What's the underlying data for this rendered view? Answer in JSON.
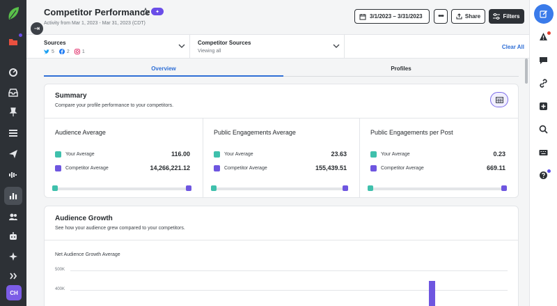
{
  "colors": {
    "your": "#3fc0ac",
    "competitor": "#6e56e0",
    "accent": "#2f6fd6"
  },
  "left_nav": {
    "icons": [
      "sprout-logo-icon",
      "folder-icon",
      "dashboard-icon",
      "inbox-icon",
      "pin-icon",
      "list-icon",
      "send-icon",
      "listening-icon",
      "reports-icon",
      "people-icon",
      "bot-icon",
      "star-sparkle-icon",
      "apps-icon"
    ],
    "avatar": "CH"
  },
  "header": {
    "title": "Competitor Performance",
    "subtitle": "Activity from Mar 1, 2023 - Mar 31, 2023 (CDT)",
    "date_range": "3/1/2023 – 3/31/2023",
    "share_label": "Share",
    "filters_label": "Filters"
  },
  "filters": {
    "sources_label": "Sources",
    "sources_counts": {
      "twitter": "5",
      "facebook": "2",
      "instagram": "1"
    },
    "competitor_sources_label": "Competitor Sources",
    "competitor_sources_value": "Viewing all",
    "clear_all": "Clear All"
  },
  "tabs": [
    {
      "label": "Overview",
      "active": true
    },
    {
      "label": "Profiles",
      "active": false
    }
  ],
  "summary": {
    "title": "Summary",
    "description": "Compare your profile performance to your competitors.",
    "metrics": [
      {
        "title": "Audience Average",
        "your_label": "Your Average",
        "your_value": "116.00",
        "competitor_label": "Competitor Average",
        "competitor_value": "14,266,221.12"
      },
      {
        "title": "Public Engagements Average",
        "your_label": "Your Average",
        "your_value": "23.63",
        "competitor_label": "Competitor Average",
        "competitor_value": "155,439.51"
      },
      {
        "title": "Public Engagements per Post",
        "your_label": "Your Average",
        "your_value": "0.23",
        "competitor_label": "Competitor Average",
        "competitor_value": "669.11"
      }
    ]
  },
  "audience_growth": {
    "title": "Audience Growth",
    "description": "See how your audience grew compared to your competitors.",
    "chart_label": "Net Audience Growth Average",
    "y_ticks": [
      "500K",
      "400K"
    ]
  }
}
